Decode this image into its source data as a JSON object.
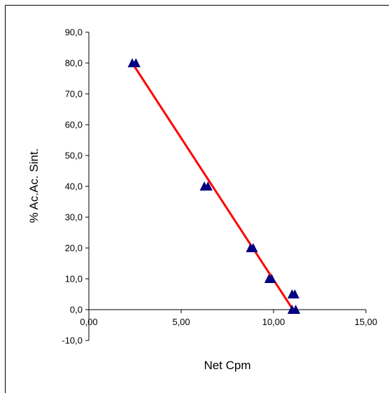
{
  "chart_data": {
    "type": "scatter",
    "title": "",
    "xlabel": "Net Cpm",
    "ylabel": "% Ac.Ac. Sint.",
    "xlim": [
      0,
      15
    ],
    "ylim": [
      -10,
      90
    ],
    "x_ticks": [
      {
        "value": 0,
        "label": "0,00"
      },
      {
        "value": 5,
        "label": "5,00"
      },
      {
        "value": 10,
        "label": "10,00"
      },
      {
        "value": 15,
        "label": "15,00"
      }
    ],
    "y_ticks": [
      {
        "value": 90,
        "label": "90,0"
      },
      {
        "value": 80,
        "label": "80,0"
      },
      {
        "value": 70,
        "label": "70,0"
      },
      {
        "value": 60,
        "label": "60,0"
      },
      {
        "value": 50,
        "label": "50,0"
      },
      {
        "value": 40,
        "label": "40,0"
      },
      {
        "value": 30,
        "label": "30,0"
      },
      {
        "value": 20,
        "label": "20,0"
      },
      {
        "value": 10,
        "label": "10,0"
      },
      {
        "value": 0,
        "label": "0,0"
      },
      {
        "value": -10,
        "label": "-10,0"
      }
    ],
    "grid": false,
    "legend": "none",
    "series": [
      {
        "marker": "triangle",
        "color": "#000080",
        "points": [
          {
            "x": 2.35,
            "y": 80
          },
          {
            "x": 2.55,
            "y": 80
          },
          {
            "x": 6.25,
            "y": 40
          },
          {
            "x": 6.45,
            "y": 40
          },
          {
            "x": 8.75,
            "y": 20
          },
          {
            "x": 8.9,
            "y": 20
          },
          {
            "x": 9.75,
            "y": 10
          },
          {
            "x": 9.9,
            "y": 10
          },
          {
            "x": 11.0,
            "y": 5
          },
          {
            "x": 11.15,
            "y": 5
          },
          {
            "x": 11.0,
            "y": 0
          },
          {
            "x": 11.2,
            "y": 0
          }
        ]
      }
    ],
    "trendline": {
      "color": "#ff0000",
      "from": {
        "x": 2.35,
        "y": 80
      },
      "to": {
        "x": 11.05,
        "y": 0
      }
    },
    "colors": {
      "axis": "#000000",
      "frame": "#000000"
    }
  }
}
